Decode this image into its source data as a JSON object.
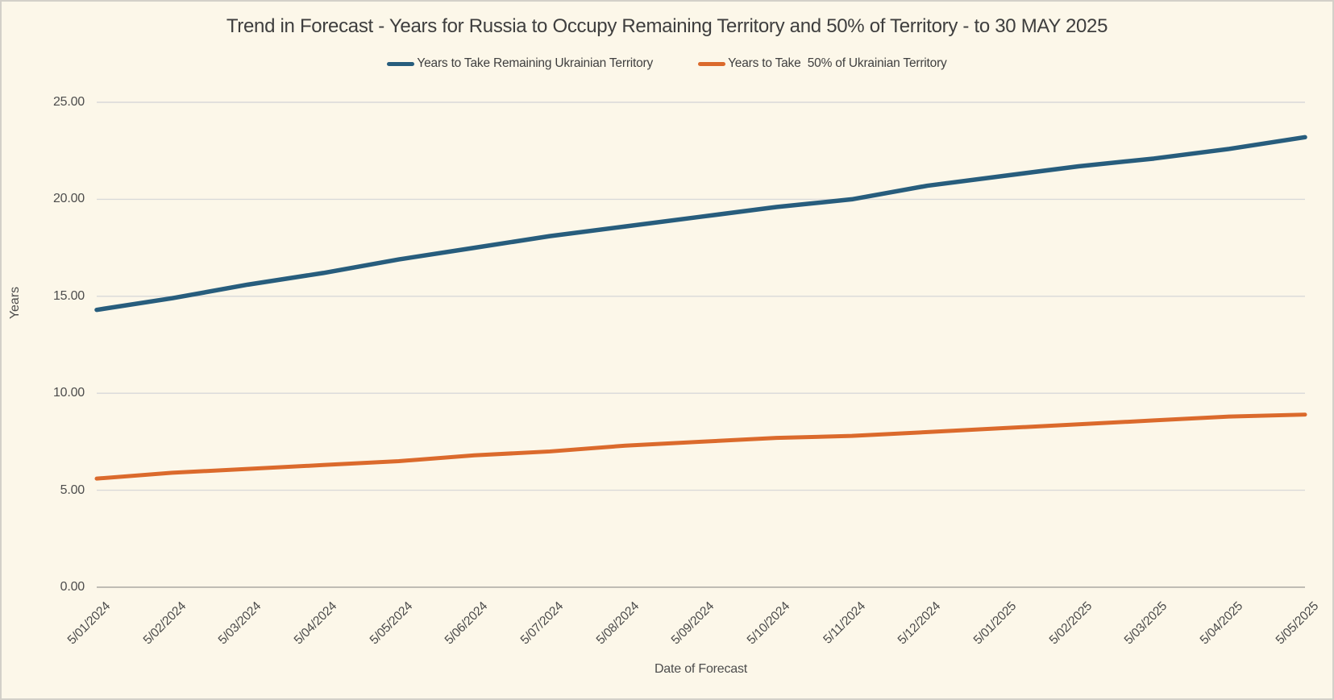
{
  "frame": {
    "background": "#FCF7E9",
    "border_color": "#D3D0C9"
  },
  "chart_data": {
    "type": "line",
    "title": "Trend in Forecast - Years for Russia to Occupy Remaining Territory and 50% of Territory - to 30 MAY 2025",
    "xlabel": "Date of Forecast",
    "ylabel": "Years",
    "ylim": [
      0,
      25
    ],
    "ytick_labels": [
      "0.00",
      "5.00",
      "10.00",
      "15.00",
      "20.00",
      "25.00"
    ],
    "grid": "horizontal",
    "gridline_color": "#D9D9D9",
    "axis_line_color": "#BFBCB4",
    "legend_position": "top",
    "categories": [
      "5/01/2024",
      "5/02/2024",
      "5/03/2024",
      "5/04/2024",
      "5/05/2024",
      "5/06/2024",
      "5/07/2024",
      "5/08/2024",
      "5/09/2024",
      "5/10/2024",
      "5/11/2024",
      "5/12/2024",
      "5/01/2025",
      "5/02/2025",
      "5/03/2025",
      "5/04/2025",
      "5/05/2025"
    ],
    "series": [
      {
        "name": "Years to Take Remaining Ukrainian Territory",
        "color": "#275D7D",
        "values": [
          14.3,
          14.9,
          15.6,
          16.2,
          16.9,
          17.5,
          18.1,
          18.6,
          19.1,
          19.6,
          20.0,
          20.7,
          21.2,
          21.7,
          22.1,
          22.6,
          23.2
        ]
      },
      {
        "name": "Years to Take  50% of Ukrainian Territory",
        "color": "#DB6A2C",
        "values": [
          5.6,
          5.9,
          6.1,
          6.3,
          6.5,
          6.8,
          7.0,
          7.3,
          7.5,
          7.7,
          7.8,
          8.0,
          8.2,
          8.4,
          8.6,
          8.8,
          8.9
        ]
      }
    ]
  }
}
